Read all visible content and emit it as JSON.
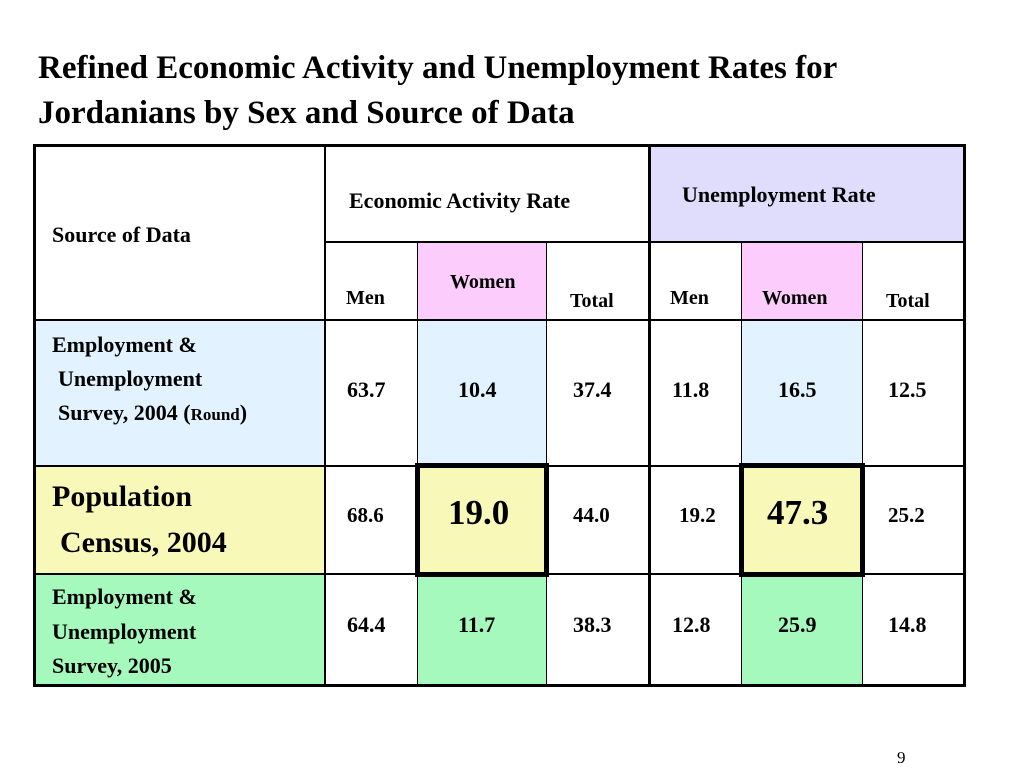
{
  "title": {
    "line1": "Refined Economic Activity and Unemployment Rates for",
    "line2": "Jordanians by Sex and Source of Data"
  },
  "colors": {
    "unemployment_header": "#e0dcfc",
    "women_header": "#fccdfc",
    "row1_blue": "#e2f2fe",
    "row2_yellow": "#f8f8b8",
    "row3_green": "#a6f9bc"
  },
  "table": {
    "source_header": "Source of Data",
    "econ_header": "Economic Activity Rate",
    "unemp_header": "Unemployment Rate",
    "sub": {
      "men": "Men",
      "women": "Women",
      "total": "Total"
    },
    "rows": [
      {
        "source_line1": "Employment &",
        "source_line2": "Unemployment",
        "source_line3": "Survey, 2004 (",
        "source_round": "Round",
        "source_close": ")",
        "econ_men": "63.7",
        "econ_women": "10.4",
        "econ_total": "37.4",
        "unemp_men": "11.8",
        "unemp_women": "16.5",
        "unemp_total": "12.5"
      },
      {
        "source_line1": "Population",
        "source_line2": "Census, 2004",
        "econ_men": "68.6",
        "econ_women": "19.0",
        "econ_total": "44.0",
        "unemp_men": "19.2",
        "unemp_women": "47.3",
        "unemp_total": "25.2"
      },
      {
        "source_line1": "Employment &",
        "source_line2": "Unemployment",
        "source_line3": "Survey, 2005",
        "econ_men": "64.4",
        "econ_women": "11.7",
        "econ_total": "38.3",
        "unemp_men": "12.8",
        "unemp_women": "25.9",
        "unemp_total": "14.8"
      }
    ]
  },
  "page_number": "9"
}
